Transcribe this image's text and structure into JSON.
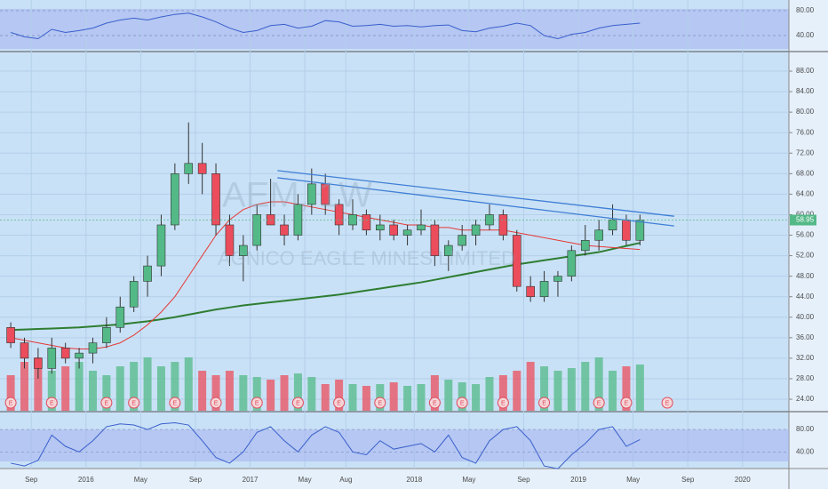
{
  "chart_data": {
    "type": "candlestick",
    "watermark": {
      "symbol": "AEM, 1W",
      "name": "AGNICO EAGLE MINES LIMITED"
    },
    "x": [
      "2015-07",
      "2015-08",
      "2015-09",
      "2015-10",
      "2015-11",
      "2015-12",
      "2016-01",
      "2016-02",
      "2016-03",
      "2016-04",
      "2016-05",
      "2016-06",
      "2016-07",
      "2016-08",
      "2016-09",
      "2016-10",
      "2016-11",
      "2016-12",
      "2017-01",
      "2017-02",
      "2017-03",
      "2017-04",
      "2017-05",
      "2017-06",
      "2017-07",
      "2017-08",
      "2017-09",
      "2017-10",
      "2017-11",
      "2017-12",
      "2018-01",
      "2018-02",
      "2018-03",
      "2018-04",
      "2018-05",
      "2018-06",
      "2018-07",
      "2018-08",
      "2018-09",
      "2018-10",
      "2018-11",
      "2018-12",
      "2019-01",
      "2019-02",
      "2019-03",
      "2019-04",
      "2019-05"
    ],
    "open": [
      38,
      35,
      32,
      30,
      34,
      32,
      33,
      35,
      38,
      42,
      47,
      50,
      58,
      68,
      70,
      68,
      58,
      52,
      54,
      60,
      58,
      56,
      62,
      66,
      62,
      58,
      60,
      57,
      58,
      56,
      57,
      58,
      52,
      54,
      56,
      58,
      60,
      56,
      46,
      44,
      47,
      48,
      53,
      55,
      57,
      59,
      55
    ],
    "high": [
      39,
      36,
      34,
      36,
      35,
      34,
      36,
      40,
      44,
      48,
      52,
      60,
      70,
      78,
      74,
      70,
      60,
      56,
      62,
      67,
      60,
      64,
      69,
      68,
      63,
      63,
      61,
      60,
      59,
      58,
      61,
      59,
      55,
      58,
      59,
      62,
      61,
      57,
      48,
      49,
      49,
      54,
      58,
      59,
      62,
      60,
      60
    ],
    "low": [
      34,
      30,
      28,
      29,
      31,
      30,
      31,
      34,
      37,
      41,
      44,
      48,
      57,
      66,
      64,
      56,
      50,
      47,
      53,
      58,
      54,
      55,
      60,
      60,
      56,
      57,
      56,
      55,
      55,
      54,
      56,
      50,
      49,
      53,
      54,
      57,
      55,
      45,
      43,
      43,
      44,
      47,
      52,
      53,
      56,
      54,
      54
    ],
    "close": [
      35,
      32,
      30,
      34,
      32,
      33,
      35,
      38,
      42,
      47,
      50,
      58,
      68,
      70,
      68,
      58,
      52,
      54,
      60,
      58,
      56,
      62,
      66,
      62,
      58,
      60,
      57,
      58,
      56,
      57,
      58,
      52,
      54,
      56,
      58,
      60,
      56,
      46,
      44,
      47,
      48,
      53,
      55,
      57,
      59,
      55,
      58.95
    ],
    "colors": {
      "up": "#53b987",
      "down": "#eb4d5c"
    },
    "xlim": [
      "2015-06",
      "2020-04"
    ],
    "xticks": [
      {
        "value": "2015-09",
        "label": "Sep"
      },
      {
        "value": "2016-01",
        "label": "2016"
      },
      {
        "value": "2016-05",
        "label": "May"
      },
      {
        "value": "2016-09",
        "label": "Sep"
      },
      {
        "value": "2017-01",
        "label": "2017"
      },
      {
        "value": "2017-05",
        "label": "May"
      },
      {
        "value": "2017-08",
        "label": "Aug"
      },
      {
        "value": "2018-01",
        "label": "2018"
      },
      {
        "value": "2018-05",
        "label": "May"
      },
      {
        "value": "2018-09",
        "label": "Sep"
      },
      {
        "value": "2019-01",
        "label": "2019"
      },
      {
        "value": "2019-05",
        "label": "May"
      },
      {
        "value": "2019-09",
        "label": "Sep"
      },
      {
        "value": "2020-01",
        "label": "2020"
      }
    ],
    "ylim": [
      21.75,
      91.47
    ],
    "yticks": [
      {
        "value": 24,
        "label": "24.00"
      },
      {
        "value": 28,
        "label": "28.00"
      },
      {
        "value": 32,
        "label": "32.00"
      },
      {
        "value": 36,
        "label": "36.00"
      },
      {
        "value": 40,
        "label": "40.00"
      },
      {
        "value": 44,
        "label": "44.00"
      },
      {
        "value": 48,
        "label": "48.00"
      },
      {
        "value": 52,
        "label": "52.00"
      },
      {
        "value": 56,
        "label": "56.00"
      },
      {
        "value": 60,
        "label": "60.00"
      },
      {
        "value": 64,
        "label": "64.00"
      },
      {
        "value": 68,
        "label": "68.00"
      },
      {
        "value": 72,
        "label": "72.00"
      },
      {
        "value": 76,
        "label": "76.00"
      },
      {
        "value": 80,
        "label": "80.00"
      },
      {
        "value": 84,
        "label": "84.00"
      },
      {
        "value": 88,
        "label": "88.00"
      }
    ],
    "grid": true,
    "last_price": 58.95,
    "moving_averages": [
      {
        "color": "#2e7d32",
        "values": [
          37.5,
          37.6,
          37.7,
          37.8,
          37.9,
          38.0,
          38.2,
          38.4,
          38.6,
          38.9,
          39.2,
          39.6,
          40.0,
          40.5,
          41.0,
          41.5,
          41.9,
          42.3,
          42.6,
          42.9,
          43.2,
          43.5,
          43.8,
          44.1,
          44.4,
          44.8,
          45.2,
          45.6,
          46.0,
          46.4,
          46.8,
          47.3,
          47.8,
          48.3,
          48.8,
          49.3,
          49.8,
          50.3,
          50.7,
          51.1,
          51.5,
          51.9,
          52.3,
          52.7,
          53.3,
          53.9,
          54.5
        ]
      },
      {
        "color": "#e53935",
        "values": [
          36,
          35.5,
          35,
          34.5,
          34,
          33.8,
          33.8,
          34.2,
          35,
          36.5,
          38.5,
          41,
          44,
          48,
          52,
          56,
          59,
          61,
          62,
          62.5,
          62.5,
          62,
          61.5,
          61,
          60.5,
          60,
          59.5,
          59,
          58.5,
          58,
          58,
          57.5,
          57.5,
          57,
          57,
          57,
          57,
          56.5,
          56,
          55.5,
          55,
          54.5,
          54,
          53.8,
          53.6,
          53.4,
          53.2
        ]
      }
    ],
    "trendlines": [
      {
        "color": "#3f7fd6",
        "x": [
          "2017-03",
          "2019-08"
        ],
        "values": [
          68.6,
          59.7
        ]
      },
      {
        "color": "#3f7fd6",
        "x": [
          "2017-03",
          "2019-08"
        ],
        "values": [
          67.2,
          57.8
        ]
      }
    ],
    "volume": {
      "ylim": [
        0,
        100
      ],
      "values": [
        40,
        55,
        60,
        45,
        50,
        55,
        45,
        40,
        50,
        55,
        60,
        50,
        55,
        60,
        45,
        40,
        45,
        40,
        38,
        35,
        40,
        42,
        38,
        30,
        35,
        30,
        28,
        30,
        32,
        28,
        30,
        40,
        35,
        32,
        30,
        38,
        40,
        45,
        55,
        50,
        45,
        48,
        55,
        60,
        45,
        50,
        52
      ]
    },
    "earnings": {
      "label": "E",
      "x": [
        "2015-07",
        "2015-10",
        "2016-02",
        "2016-04",
        "2016-07",
        "2016-10",
        "2017-01",
        "2017-04",
        "2017-07",
        "2017-10",
        "2018-02",
        "2018-04",
        "2018-07",
        "2018-10",
        "2019-02",
        "2019-04",
        "2019-07"
      ]
    },
    "rsi": {
      "color": "#3a5fcd",
      "ylim": [
        15.7,
        85.7
      ],
      "yticks": [
        {
          "value": 80,
          "label": "80.00"
        },
        {
          "value": 40,
          "label": "40.00"
        }
      ],
      "values": [
        45,
        38,
        35,
        50,
        45,
        48,
        52,
        60,
        65,
        68,
        65,
        70,
        74,
        76,
        70,
        62,
        52,
        45,
        48,
        56,
        58,
        52,
        55,
        64,
        62,
        55,
        56,
        58,
        55,
        56,
        54,
        56,
        57,
        48,
        46,
        52,
        55,
        60,
        56,
        40,
        35,
        42,
        45,
        52,
        56,
        58,
        60
      ]
    },
    "stoch": {
      "color": "#3a5fcd",
      "ylim": [
        10.4,
        94.4
      ],
      "yticks": [
        {
          "value": 80,
          "label": "80.00"
        },
        {
          "value": 40,
          "label": "40.00"
        }
      ],
      "values": [
        20,
        15,
        25,
        70,
        50,
        40,
        60,
        85,
        90,
        88,
        80,
        90,
        92,
        88,
        60,
        30,
        20,
        40,
        75,
        85,
        60,
        40,
        70,
        85,
        75,
        40,
        35,
        60,
        45,
        50,
        55,
        40,
        70,
        30,
        20,
        60,
        80,
        85,
        60,
        15,
        10,
        35,
        55,
        80,
        85,
        50,
        62
      ]
    }
  }
}
